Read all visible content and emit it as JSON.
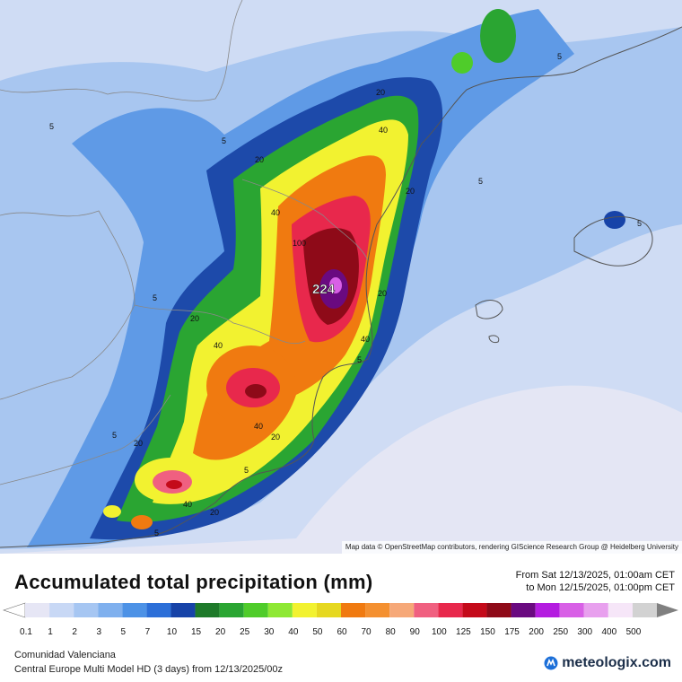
{
  "map": {
    "peak_value": "224",
    "attribution": "Map data © OpenStreetMap contributors, rendering GIScience Research Group @ Heidelberg University",
    "contour_labels": [
      {
        "text": "5",
        "series": "a"
      },
      {
        "text": "5",
        "series": "b"
      },
      {
        "text": "5",
        "series": "c"
      },
      {
        "text": "5",
        "series": "d"
      },
      {
        "text": "5",
        "series": "e"
      },
      {
        "text": "5",
        "series": "f"
      },
      {
        "text": "5",
        "series": "g"
      },
      {
        "text": "5",
        "series": "h"
      },
      {
        "text": "5",
        "series": "i"
      },
      {
        "text": "5",
        "series": "j"
      },
      {
        "text": "20",
        "series": "a"
      },
      {
        "text": "20",
        "series": "b"
      },
      {
        "text": "20",
        "series": "c"
      },
      {
        "text": "20",
        "series": "d"
      },
      {
        "text": "20",
        "series": "e"
      },
      {
        "text": "20",
        "series": "f"
      },
      {
        "text": "20",
        "series": "g"
      },
      {
        "text": "20",
        "series": "h"
      },
      {
        "text": "40",
        "series": "a"
      },
      {
        "text": "40",
        "series": "b"
      },
      {
        "text": "40",
        "series": "c"
      },
      {
        "text": "40",
        "series": "d"
      },
      {
        "text": "40",
        "series": "e"
      },
      {
        "text": "40",
        "series": "f"
      },
      {
        "text": "100",
        "series": "a"
      }
    ]
  },
  "title": "Accumulated total precipitation (mm)",
  "period": {
    "from": "From Sat 12/13/2025, 01:00am CET",
    "to": "to Mon 12/15/2025, 01:00pm CET"
  },
  "legend": {
    "values": [
      "0.1",
      "1",
      "2",
      "3",
      "5",
      "7",
      "10",
      "15",
      "20",
      "25",
      "30",
      "40",
      "50",
      "60",
      "70",
      "80",
      "90",
      "100",
      "125",
      "150",
      "175",
      "200",
      "250",
      "300",
      "400",
      "500"
    ],
    "colors": [
      "#e6e6f5",
      "#c8d8f5",
      "#a6c6f2",
      "#7fb0ee",
      "#4d92e6",
      "#2c6fd8",
      "#1743a8",
      "#1e7a2a",
      "#2aa532",
      "#4fcc2a",
      "#8ee834",
      "#f2f230",
      "#e6d820",
      "#f07a10",
      "#f49030",
      "#f6a878",
      "#f06080",
      "#e8284c",
      "#c40a1a",
      "#8e0a18",
      "#6a0a80",
      "#b41ce0",
      "#d860e6",
      "#e8a0ee",
      "#f6e6f8",
      "#d2d2d2"
    ]
  },
  "footer": {
    "region": "Comunidad Valenciana",
    "model": "Central Europe Multi Model HD (3 days) from 12/13/2025/00z",
    "brand": "meteologix.com"
  }
}
